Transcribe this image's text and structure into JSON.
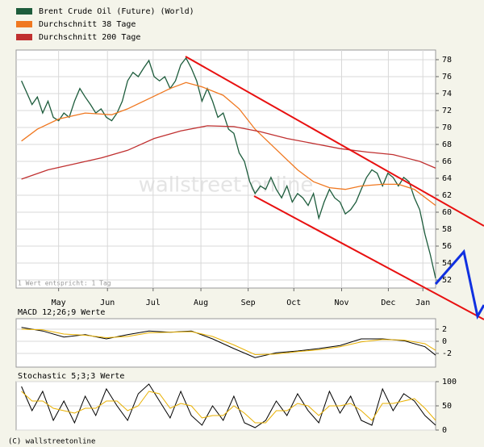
{
  "chart_data": [
    {
      "type": "line",
      "note": "1 Wert entspricht: 1 Tag",
      "watermark": "wallstreet-online",
      "xlim": [
        -1,
        78
      ],
      "xticks": [
        {
          "value": 7.0,
          "label": "May"
        },
        {
          "value": 16.2,
          "label": "Jun"
        },
        {
          "value": 24.8,
          "label": "Jul"
        },
        {
          "value": 33.8,
          "label": "Aug"
        },
        {
          "value": 42.7,
          "label": "Sep"
        },
        {
          "value": 51.3,
          "label": "Oct"
        },
        {
          "value": 60.3,
          "label": "Nov"
        },
        {
          "value": 69.1,
          "label": "Dec"
        },
        {
          "value": 75.6,
          "label": "Jan"
        }
      ],
      "ylim": [
        51.05,
        79.14
      ],
      "yticks": [
        52,
        54,
        56,
        58,
        60,
        62,
        64,
        66,
        68,
        70,
        72,
        74,
        76,
        78
      ],
      "grid": true,
      "series": [
        {
          "name": "Brent Crude Oil (Future) (World)",
          "color": "#1d5c3c",
          "x": [
            0,
            1,
            2,
            3,
            4,
            5,
            6,
            7,
            8,
            9,
            10,
            11,
            12,
            13,
            14,
            15,
            16,
            17,
            18,
            19,
            20,
            21,
            22,
            23,
            24,
            25,
            26,
            27,
            28,
            29,
            30,
            31,
            32,
            33,
            34,
            35,
            36,
            37,
            38,
            39,
            40,
            41,
            42,
            43,
            44,
            45,
            46,
            47,
            48,
            49,
            50,
            51,
            52,
            53,
            54,
            55,
            56,
            57,
            58,
            59,
            60,
            61,
            62,
            63,
            64,
            65,
            66,
            67,
            68,
            69,
            70,
            71,
            72,
            73,
            74,
            75,
            76,
            77,
            78
          ],
          "values": [
            75.5,
            74.1,
            72.7,
            73.6,
            71.7,
            73.1,
            71.2,
            70.8,
            71.7,
            71.2,
            73.1,
            74.6,
            73.6,
            72.7,
            71.7,
            72.2,
            71.2,
            70.8,
            71.7,
            73.1,
            75.5,
            76.5,
            76.0,
            77.0,
            77.9,
            76.0,
            75.5,
            76.0,
            74.6,
            75.5,
            77.4,
            78.2,
            77.0,
            75.5,
            73.1,
            74.6,
            73.1,
            71.2,
            71.7,
            69.8,
            69.3,
            67.0,
            66.0,
            63.6,
            62.2,
            63.1,
            62.7,
            64.1,
            62.7,
            61.7,
            63.1,
            61.2,
            62.2,
            61.7,
            60.8,
            62.2,
            59.3,
            61.2,
            62.7,
            61.7,
            61.2,
            59.8,
            60.3,
            61.2,
            62.7,
            64.1,
            65.0,
            64.6,
            63.1,
            64.6,
            64.1,
            63.1,
            64.1,
            63.6,
            61.7,
            60.3,
            57.4,
            55.0,
            52.2
          ]
        },
        {
          "name": "Durchschnitt 38 Tage",
          "color": "#f07820",
          "x": [
            0,
            3,
            7,
            12,
            17,
            20,
            24,
            28,
            31,
            34,
            38,
            41,
            44,
            48,
            52,
            55,
            58,
            61,
            64,
            68,
            71,
            74,
            78
          ],
          "values": [
            68.4,
            69.8,
            71.0,
            71.7,
            71.5,
            72.2,
            73.4,
            74.6,
            75.3,
            74.8,
            73.8,
            72.2,
            69.8,
            67.4,
            65.0,
            63.6,
            62.9,
            62.7,
            63.1,
            63.3,
            63.3,
            62.7,
            60.8
          ]
        },
        {
          "name": "Durchschnitt 200 Tage",
          "color": "#c03030",
          "x": [
            0,
            5,
            10,
            15,
            20,
            25,
            30,
            35,
            40,
            45,
            50,
            55,
            60,
            65,
            70,
            75,
            78
          ],
          "values": [
            63.9,
            65.0,
            65.7,
            66.4,
            67.3,
            68.7,
            69.6,
            70.2,
            70.1,
            69.5,
            68.7,
            68.1,
            67.5,
            67.1,
            66.8,
            66.0,
            65.2
          ]
        }
      ]
    },
    {
      "type": "line",
      "title": "MACD 12;26;9 Werte",
      "xlim": [
        -1,
        78
      ],
      "ylim": [
        -4.27,
        3.73
      ],
      "yticks": [
        2,
        0,
        -2
      ],
      "grid": true,
      "series": [
        {
          "color": "#000000",
          "x": [
            0,
            4,
            8,
            12,
            16,
            20,
            24,
            28,
            32,
            36,
            40,
            44,
            48,
            52,
            56,
            60,
            64,
            68,
            72,
            76,
            78
          ],
          "values": [
            2.3,
            1.7,
            0.7,
            1.1,
            0.4,
            1.1,
            1.7,
            1.5,
            1.7,
            0.4,
            -1.2,
            -2.7,
            -1.9,
            -1.6,
            -1.2,
            -0.7,
            0.4,
            0.4,
            0.1,
            -0.9,
            -2.3
          ]
        },
        {
          "color": "#e8b000",
          "x": [
            0,
            4,
            8,
            12,
            16,
            20,
            24,
            28,
            32,
            36,
            40,
            44,
            48,
            52,
            56,
            60,
            64,
            68,
            72,
            76,
            78
          ],
          "values": [
            2.0,
            1.9,
            1.2,
            1.0,
            0.6,
            0.8,
            1.4,
            1.5,
            1.6,
            0.8,
            -0.6,
            -2.2,
            -2.1,
            -1.7,
            -1.4,
            -0.9,
            -0.1,
            0.3,
            0.2,
            -0.4,
            -1.5
          ]
        }
      ]
    },
    {
      "type": "line",
      "title": "Stochastic 5;3;3 Werte",
      "xlim": [
        -1,
        78
      ],
      "ylim": [
        0,
        100
      ],
      "yticks": [
        100,
        50,
        0
      ],
      "grid": true,
      "series": [
        {
          "color": "#000000",
          "x": [
            0,
            2,
            4,
            6,
            8,
            10,
            12,
            14,
            16,
            18,
            20,
            22,
            24,
            26,
            28,
            30,
            32,
            34,
            36,
            38,
            40,
            42,
            44,
            46,
            48,
            50,
            52,
            54,
            56,
            58,
            60,
            62,
            64,
            66,
            68,
            70,
            72,
            74,
            76,
            78
          ],
          "values": [
            90,
            40,
            80,
            20,
            60,
            15,
            70,
            30,
            85,
            50,
            20,
            75,
            95,
            60,
            25,
            80,
            30,
            10,
            50,
            20,
            70,
            15,
            5,
            20,
            60,
            30,
            75,
            40,
            15,
            80,
            35,
            70,
            20,
            10,
            85,
            40,
            75,
            60,
            30,
            10
          ]
        },
        {
          "color": "#e8b000",
          "x": [
            0,
            2,
            4,
            6,
            8,
            10,
            12,
            14,
            16,
            18,
            20,
            22,
            24,
            26,
            28,
            30,
            32,
            34,
            36,
            38,
            40,
            42,
            44,
            46,
            48,
            50,
            52,
            54,
            56,
            58,
            60,
            62,
            64,
            66,
            68,
            70,
            72,
            74,
            76,
            78
          ],
          "values": [
            80,
            60,
            60,
            45,
            40,
            35,
            45,
            45,
            60,
            60,
            40,
            50,
            80,
            75,
            45,
            55,
            50,
            25,
            30,
            30,
            50,
            35,
            15,
            15,
            40,
            40,
            55,
            50,
            30,
            50,
            50,
            55,
            40,
            20,
            55,
            55,
            60,
            65,
            45,
            20
          ]
        }
      ]
    }
  ],
  "copyright": "(C) wallstreetonline"
}
